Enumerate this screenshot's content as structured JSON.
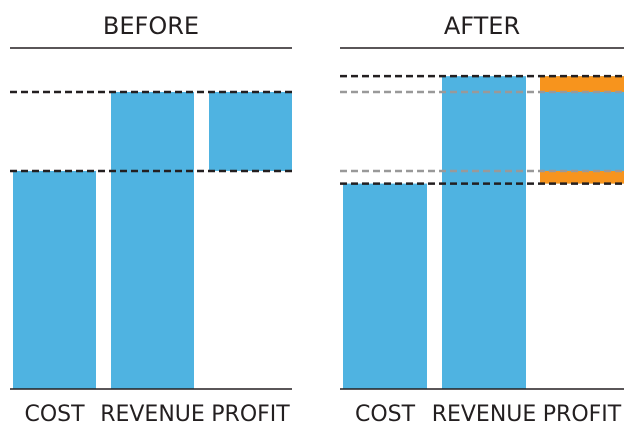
{
  "chart_data": [
    {
      "type": "bar",
      "title": "BEFORE",
      "categories": [
        "COST",
        "REVENUE",
        "PROFIT"
      ],
      "bars": [
        {
          "category": "COST",
          "bottom": 0,
          "top": 69
        },
        {
          "category": "REVENUE",
          "bottom": 0,
          "top": 94
        },
        {
          "category": "PROFIT",
          "bottom": 69,
          "top": 94
        }
      ],
      "reference_lines": [
        {
          "value": 69,
          "style": "dashed",
          "color": "#231f20"
        },
        {
          "value": 94,
          "style": "dashed",
          "color": "#231f20"
        }
      ],
      "ylim": [
        0,
        100
      ]
    },
    {
      "type": "bar",
      "title": "AFTER",
      "categories": [
        "COST",
        "REVENUE",
        "PROFIT"
      ],
      "bars": [
        {
          "category": "COST",
          "bottom": 0,
          "top": 65
        },
        {
          "category": "REVENUE",
          "bottom": 0,
          "top": 99
        },
        {
          "category": "PROFIT",
          "bottom": 65,
          "top": 99
        }
      ],
      "increase_segments": [
        {
          "category": "PROFIT",
          "bottom": 65,
          "top": 69
        },
        {
          "category": "PROFIT",
          "bottom": 94,
          "top": 99
        }
      ],
      "reference_lines": [
        {
          "value": 69,
          "style": "dashed",
          "color": "#999999"
        },
        {
          "value": 94,
          "style": "dashed",
          "color": "#999999"
        },
        {
          "value": 65,
          "style": "dashed",
          "color": "#231f20"
        },
        {
          "value": 99,
          "style": "dashed",
          "color": "#231f20"
        }
      ],
      "ylim": [
        0,
        100
      ]
    }
  ],
  "colors": {
    "bar": "#4fb3e1",
    "increase": "#f7941d",
    "axis": "#231f20",
    "reference_dark": "#231f20",
    "reference_light": "#999999"
  }
}
